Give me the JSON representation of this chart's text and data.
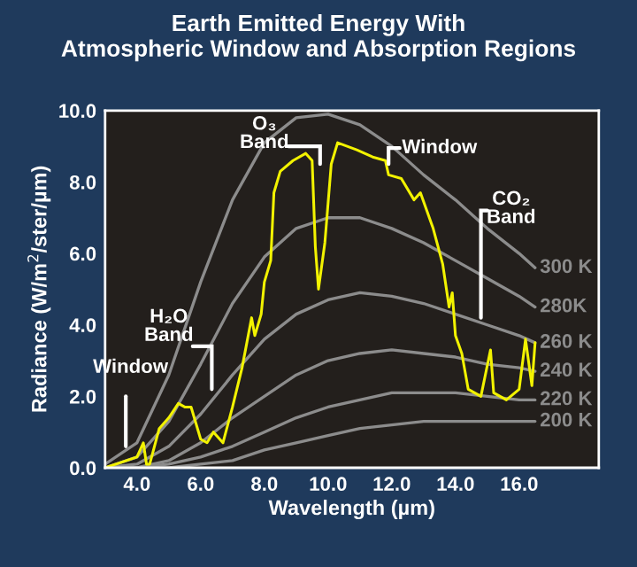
{
  "chart_data": {
    "type": "line",
    "title": "Earth Emitted Energy With\nAtmospheric Window and Absorption Regions",
    "xlabel": "Wavelength (µm)",
    "ylabel": "Radiance (W/m$^{2}$/ster/µm)",
    "xlim": [
      3,
      18.5
    ],
    "ylim": [
      0,
      10
    ],
    "xticks": [
      {
        "value": 4,
        "label": "4.0"
      },
      {
        "value": 6,
        "label": "6.0"
      },
      {
        "value": 8,
        "label": "8.0"
      },
      {
        "value": 10,
        "label": "10.0"
      },
      {
        "value": 12,
        "label": "12.0"
      },
      {
        "value": 14,
        "label": "14.0"
      },
      {
        "value": 16,
        "label": "16.0"
      }
    ],
    "yticks": [
      {
        "value": 0,
        "label": "0.0"
      },
      {
        "value": 2,
        "label": "2.0"
      },
      {
        "value": 4,
        "label": "4.0"
      },
      {
        "value": 6,
        "label": "6.0"
      },
      {
        "value": 8,
        "label": "8.0"
      },
      {
        "value": 10,
        "label": "10.0"
      }
    ],
    "grid": false,
    "line_style": "solid",
    "marker": "none",
    "series": [
      {
        "name": "300 K",
        "color": "#8c8c8c",
        "x": [
          3,
          4,
          5,
          6,
          7,
          8,
          9,
          10,
          11,
          12,
          13,
          14,
          15,
          16,
          16.5
        ],
        "values": [
          0.1,
          0.7,
          2.6,
          5.2,
          7.5,
          9.1,
          9.8,
          9.9,
          9.6,
          9.0,
          8.2,
          7.5,
          6.7,
          6.0,
          5.6
        ]
      },
      {
        "name": "280K",
        "color": "#8c8c8c",
        "x": [
          3,
          4,
          5,
          6,
          7,
          8,
          9,
          10,
          11,
          12,
          13,
          14,
          15,
          16,
          16.5
        ],
        "values": [
          0.0,
          0.3,
          1.3,
          2.9,
          4.6,
          5.9,
          6.7,
          7.0,
          7.0,
          6.7,
          6.3,
          5.8,
          5.3,
          4.8,
          4.5
        ]
      },
      {
        "name": "260 K",
        "color": "#8c8c8c",
        "x": [
          3,
          4,
          5,
          6,
          7,
          8,
          9,
          10,
          11,
          12,
          13,
          14,
          15,
          16,
          16.5
        ],
        "values": [
          0.0,
          0.1,
          0.6,
          1.5,
          2.6,
          3.6,
          4.3,
          4.7,
          4.9,
          4.8,
          4.6,
          4.3,
          4.0,
          3.7,
          3.5
        ]
      },
      {
        "name": "240 K",
        "color": "#8c8c8c",
        "x": [
          3,
          4,
          5,
          6,
          7,
          8,
          9,
          10,
          11,
          12,
          13,
          14,
          15,
          16,
          16.5
        ],
        "values": [
          0.0,
          0.0,
          0.2,
          0.7,
          1.4,
          2.0,
          2.6,
          3.0,
          3.2,
          3.3,
          3.2,
          3.1,
          2.9,
          2.8,
          2.7
        ]
      },
      {
        "name": "220 K",
        "color": "#8c8c8c",
        "x": [
          3,
          4,
          5,
          6,
          7,
          8,
          9,
          10,
          11,
          12,
          13,
          14,
          15,
          16,
          16.5
        ],
        "values": [
          0.0,
          0.0,
          0.1,
          0.3,
          0.6,
          1.0,
          1.4,
          1.7,
          1.9,
          2.1,
          2.1,
          2.1,
          2.0,
          1.9,
          1.9
        ]
      },
      {
        "name": "200 K",
        "color": "#8c8c8c",
        "x": [
          3,
          4,
          5,
          6,
          7,
          8,
          9,
          10,
          11,
          12,
          13,
          14,
          15,
          16,
          16.5
        ],
        "values": [
          0.0,
          0.0,
          0.0,
          0.1,
          0.2,
          0.5,
          0.7,
          0.9,
          1.1,
          1.2,
          1.3,
          1.3,
          1.3,
          1.3,
          1.3
        ]
      },
      {
        "color": "#f2f200",
        "x": [
          3.0,
          4.0,
          4.2,
          4.3,
          4.4,
          4.7,
          5.0,
          5.3,
          5.5,
          5.7,
          6.0,
          6.2,
          6.4,
          6.7,
          7.0,
          7.3,
          7.6,
          7.7,
          7.9,
          8.0,
          8.2,
          8.3,
          8.5,
          8.9,
          9.3,
          9.5,
          9.6,
          9.7,
          9.9,
          10.1,
          10.3,
          10.9,
          11.4,
          11.8,
          11.9,
          12.3,
          12.7,
          12.9,
          13.3,
          13.6,
          13.8,
          13.9,
          14.0,
          14.2,
          14.4,
          14.8,
          15.1,
          15.2,
          15.6,
          16.0,
          16.2,
          16.4,
          16.5
        ],
        "values": [
          0.0,
          0.3,
          0.7,
          0.1,
          0.1,
          1.1,
          1.4,
          1.8,
          1.7,
          1.7,
          0.8,
          0.7,
          1.0,
          0.7,
          1.7,
          2.8,
          4.2,
          3.7,
          4.3,
          5.2,
          5.8,
          7.7,
          8.3,
          8.6,
          8.8,
          8.6,
          6.2,
          5.0,
          6.3,
          8.5,
          9.1,
          8.9,
          8.7,
          8.6,
          8.2,
          8.1,
          7.5,
          7.7,
          6.7,
          5.7,
          4.5,
          4.9,
          3.7,
          3.2,
          2.2,
          2.0,
          3.3,
          2.1,
          1.9,
          2.2,
          3.6,
          2.3,
          3.5
        ]
      }
    ],
    "annotations": [
      {
        "text": "Window",
        "x": 3.65,
        "y": 0.6
      },
      {
        "text": "H₂O\nBand",
        "x": 6.35,
        "y": 2.2
      },
      {
        "text": "O₃\nBand",
        "x": 9.75,
        "y": 8.5
      },
      {
        "text": "Window",
        "x": 11.9,
        "y": 8.5
      },
      {
        "text": "CO₂\nBand",
        "x": 14.8,
        "y": 4.2
      }
    ]
  }
}
